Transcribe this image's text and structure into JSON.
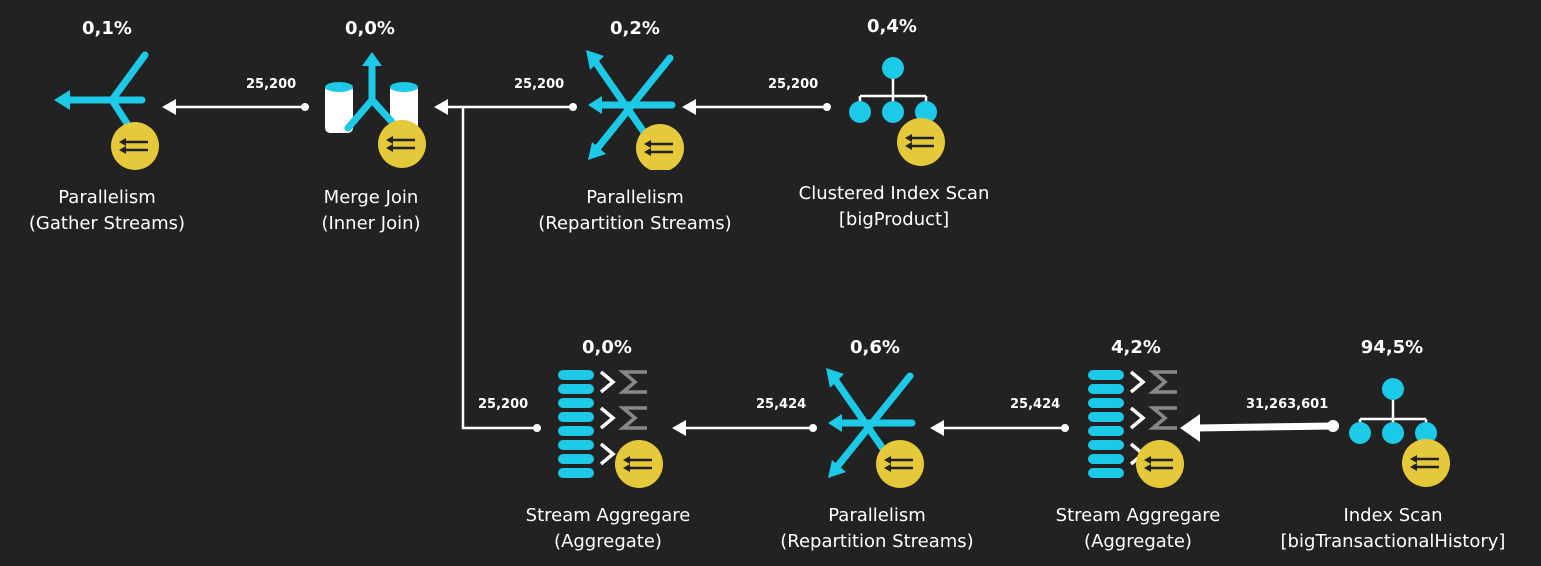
{
  "colors": {
    "background": "#222222",
    "accent": "#1cc9e6",
    "parallel_badge": "#e6c93a",
    "sigma": "#888888",
    "text": "#ffffff"
  },
  "operators": [
    {
      "id": "gather",
      "icon": "parallelism-gather-icon",
      "cost": "0,1%",
      "name": "Parallelism",
      "detail": "(Gather Streams)"
    },
    {
      "id": "merge",
      "icon": "merge-join-icon",
      "cost": "0,0%",
      "name": "Merge Join",
      "detail": "(Inner Join)"
    },
    {
      "id": "repart1",
      "icon": "parallelism-repartition-icon",
      "cost": "0,2%",
      "name": "Parallelism",
      "detail": "(Repartition Streams)"
    },
    {
      "id": "cis",
      "icon": "clustered-index-scan-icon",
      "cost": "0,4%",
      "name": "Clustered Index Scan",
      "detail": "[bigProduct]"
    },
    {
      "id": "agg1",
      "icon": "stream-aggregate-icon",
      "cost": "0,0%",
      "name": "Stream Aggregare",
      "detail": "(Aggregate)"
    },
    {
      "id": "repart2",
      "icon": "parallelism-repartition-icon",
      "cost": "0,6%",
      "name": "Parallelism",
      "detail": "(Repartition Streams)"
    },
    {
      "id": "agg2",
      "icon": "stream-aggregate-icon",
      "cost": "4,2%",
      "name": "Stream Aggregare",
      "detail": "(Aggregate)"
    },
    {
      "id": "is",
      "icon": "index-scan-icon",
      "cost": "94,5%",
      "name": "Index Scan",
      "detail": "[bigTransactionalHistory]"
    }
  ],
  "edges": [
    {
      "from": "merge",
      "to": "gather",
      "rows": "25,200"
    },
    {
      "from": "repart1",
      "to": "merge",
      "rows": "25,200"
    },
    {
      "from": "cis",
      "to": "repart1",
      "rows": "25,200"
    },
    {
      "from": "agg1",
      "to": "merge",
      "rows": "25,200"
    },
    {
      "from": "repart2",
      "to": "agg1",
      "rows": "25,424"
    },
    {
      "from": "agg2",
      "to": "repart2",
      "rows": "25,424"
    },
    {
      "from": "is",
      "to": "agg2",
      "rows": "31,263,601"
    }
  ]
}
